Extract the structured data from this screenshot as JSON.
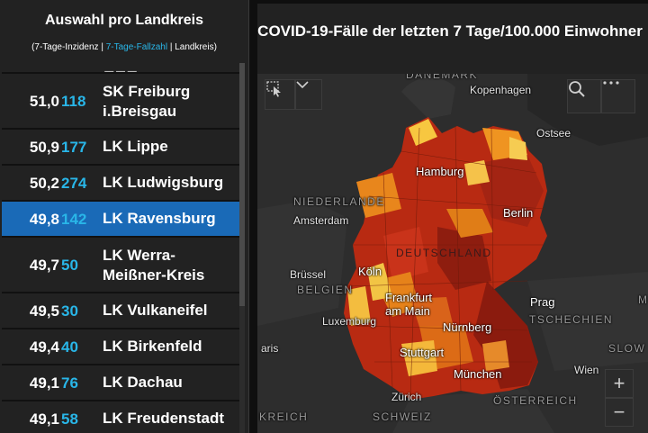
{
  "left_panel": {
    "title": "Auswahl pro Landkreis",
    "subtitle_part1": "(7-Tage-Inzidenz | ",
    "subtitle_part2": "7-Tage-Fallzahl",
    "subtitle_part3": " | Landkreis)",
    "rows": [
      {
        "incidence": "51,0",
        "count": "118",
        "name": "SK Freiburg i.Breisgau",
        "selected": false
      },
      {
        "incidence": "50,9",
        "count": "177",
        "name": "LK Lippe",
        "selected": false
      },
      {
        "incidence": "50,2",
        "count": "274",
        "name": "LK Ludwigsburg",
        "selected": false
      },
      {
        "incidence": "49,8",
        "count": "142",
        "name": "LK Ravensburg",
        "selected": true
      },
      {
        "incidence": "49,7",
        "count": "50",
        "name": "LK Werra-Meißner-Kreis",
        "selected": false
      },
      {
        "incidence": "49,5",
        "count": "30",
        "name": "LK Vulkaneifel",
        "selected": false
      },
      {
        "incidence": "49,4",
        "count": "40",
        "name": "LK Birkenfeld",
        "selected": false
      },
      {
        "incidence": "49,1",
        "count": "76",
        "name": "LK Dachau",
        "selected": false
      },
      {
        "incidence": "49,1",
        "count": "58",
        "name": "LK Freudenstadt",
        "selected": false
      }
    ]
  },
  "map_panel": {
    "title": "COVID-19-Fälle der letzten 7 Tage/100.000 Einwohner",
    "labels": {
      "danemark": "DÄNEMARK",
      "kopenhagen": "Kopenhagen",
      "ostsee": "Ostsee",
      "hamburg": "Hamburg",
      "niederlande": "NIEDERLANDE",
      "amsterdam": "Amsterdam",
      "berlin": "Berlin",
      "deutschland": "DEUTSCHLAND",
      "brussel": "Brüssel",
      "koln": "Köln",
      "belgien": "BELGIEN",
      "frankfurt": "Frankfurt am Main",
      "prag": "Prag",
      "tschechien": "TSCHECHIEN",
      "luxemburg": "Luxemburg",
      "nurnberg": "Nürnberg",
      "paris": "aris",
      "stuttgart": "Stuttgart",
      "slow": "SLOW",
      "munchen": "München",
      "wien": "Wien",
      "zurich": "Zürich",
      "osterreich": "ÖSTERREICH",
      "kreich": "KREICH",
      "schweiz": "SCHWEIZ",
      "m": "M"
    },
    "icons": {
      "select": "selection-tool-icon",
      "dropdown": "chevron-down-icon",
      "search": "search-icon",
      "more": "more-options-icon",
      "zoom_in": "+",
      "zoom_out": "−"
    }
  }
}
